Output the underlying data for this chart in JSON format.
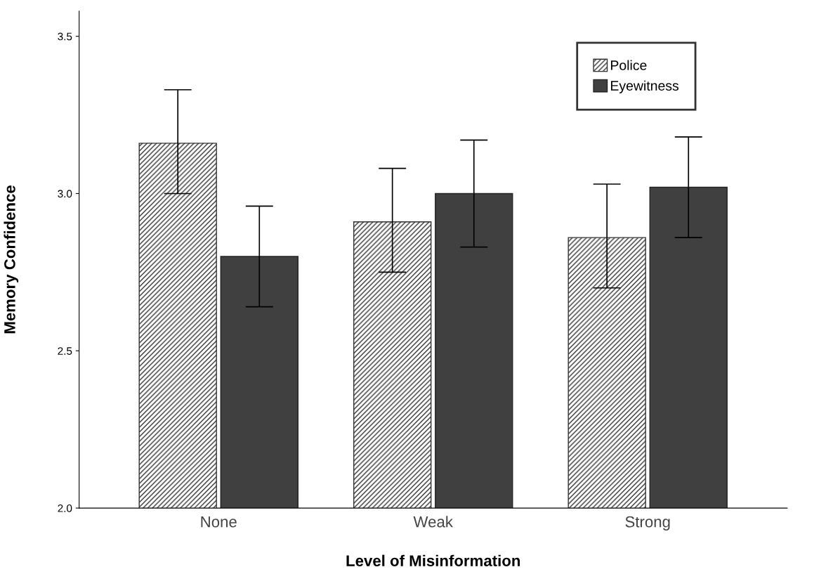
{
  "chart_data": {
    "type": "bar",
    "xlabel": "Level of Misinformation",
    "ylabel": "Memory Confidence",
    "categories": [
      "None",
      "Weak",
      "Strong"
    ],
    "series": [
      {
        "name": "Police",
        "color": "#333333",
        "values": [
          3.16,
          2.91,
          2.86
        ],
        "errors": [
          [
            3.0,
            3.33
          ],
          [
            2.75,
            3.08
          ],
          [
            2.7,
            3.03
          ]
        ]
      },
      {
        "name": "Eyewitness",
        "color": "#404040",
        "values": [
          2.8,
          3.0,
          3.02
        ],
        "errors": [
          [
            2.64,
            2.96
          ],
          [
            2.83,
            3.17
          ],
          [
            2.86,
            3.18
          ]
        ]
      }
    ],
    "ylim": [
      2.0,
      3.58
    ],
    "yticks": [
      {
        "value": 2.0,
        "label": "2.0"
      },
      {
        "value": 2.5,
        "label": "2.5"
      },
      {
        "value": 3.0,
        "label": "3.0"
      },
      {
        "value": 3.5,
        "label": "3.5"
      }
    ],
    "grid": false,
    "legend": "top right"
  }
}
